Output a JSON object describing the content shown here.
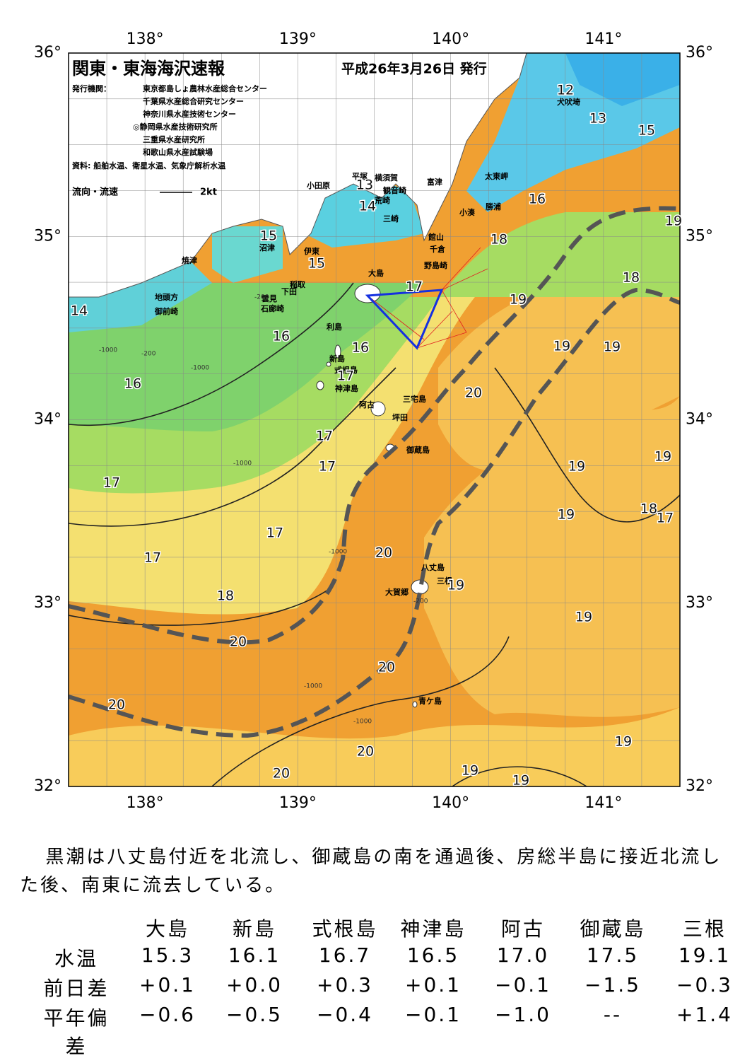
{
  "header": {
    "title": "関東・東海海沢速報",
    "date": "平成26年3月26日 発行",
    "issuer_label": "発行機関：",
    "issuers": [
      "東京都島しょ農林水産総合センター",
      "千葉県水産総合研究センター",
      "神奈川県水産技術センター",
      "◎静岡県水産技術研究所",
      "三重県水産研究所",
      "和歌山県水産試験場"
    ],
    "source": "資料: 船舶水温、衛星水温、気象庁解析水温",
    "flow_legend": "流向・流速",
    "flow_scale": "2kt"
  },
  "map": {
    "lat_ticks": [
      {
        "value": 36,
        "label": "36°"
      },
      {
        "value": 35,
        "label": "35°"
      },
      {
        "value": 34,
        "label": "34°"
      },
      {
        "value": 33,
        "label": "33°"
      },
      {
        "value": 32,
        "label": "32°"
      }
    ],
    "lon_ticks": [
      {
        "value": 138,
        "label": "138°"
      },
      {
        "value": 139,
        "label": "139°"
      },
      {
        "value": 140,
        "label": "140°"
      },
      {
        "value": 141,
        "label": "141°"
      }
    ],
    "place_names": [
      "犬吠埼",
      "太東岬",
      "勝浦",
      "小湊",
      "富津",
      "館山",
      "千倉",
      "野島崎",
      "観音崎",
      "横須賀",
      "平塚",
      "小田原",
      "荒崎",
      "三崎",
      "大島",
      "伊東",
      "稲取",
      "下田",
      "雲見",
      "石廊崎",
      "沼津",
      "焼津",
      "地頭方",
      "御前崎",
      "利島",
      "新島",
      "式根島",
      "神津島",
      "阿古",
      "三宅島",
      "坪田",
      "御蔵島",
      "八丈島",
      "三根",
      "大賀郷",
      "青ケ島"
    ],
    "isotherm_labels": [
      12,
      13,
      14,
      13,
      15,
      16,
      15,
      15,
      17,
      18,
      19,
      18,
      19,
      14,
      16,
      16,
      19,
      19,
      16,
      17,
      20,
      17,
      17,
      19,
      19,
      17,
      19,
      18,
      17,
      17,
      20,
      17,
      19,
      18,
      19,
      20,
      20,
      20,
      19,
      20,
      20,
      19,
      19
    ],
    "depth_labels": [
      "-1000",
      "-200",
      "-1000",
      "-200",
      "-1000",
      "-1000",
      "-1000",
      "-1000",
      "-200"
    ]
  },
  "text": {
    "summary": "黒潮は八丈島付近を北流し、御蔵島の南を通過後、房総半島に接近北流した後、南東に流去している。"
  },
  "table": {
    "columns": [
      "大島",
      "新島",
      "式根島",
      "神津島",
      "阿古",
      "御蔵島",
      "三根"
    ],
    "rows": [
      {
        "label": "水温",
        "cells": [
          "15.3",
          "16.1",
          "16.7",
          "16.5",
          "17.0",
          "17.5",
          "19.1"
        ]
      },
      {
        "label": "前日差",
        "cells": [
          "+0.1",
          "+0.0",
          "+0.3",
          "+0.1",
          "−0.1",
          "−1.5",
          "−0.3"
        ]
      },
      {
        "label": "平年偏差",
        "cells": [
          "−0.6",
          "−0.5",
          "−0.4",
          "−0.1",
          "−1.0",
          "--",
          "+1.4"
        ]
      }
    ]
  }
}
